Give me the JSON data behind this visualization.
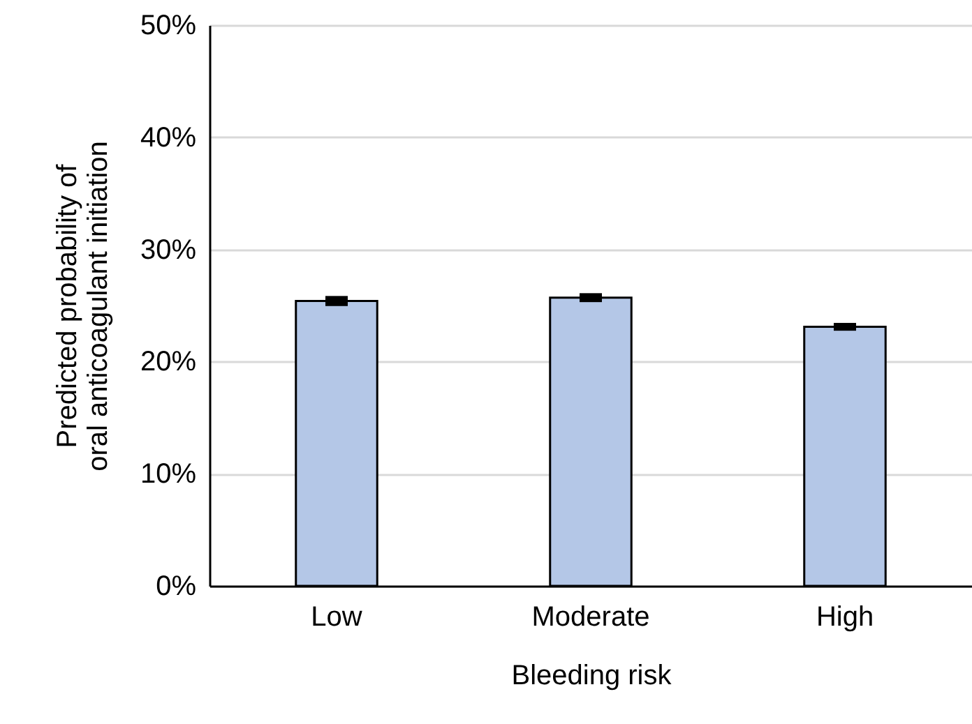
{
  "chart_data": {
    "type": "bar",
    "xlabel": "Bleeding risk",
    "ylabel": "Predicted probability of\noral anticoagulant initiation",
    "categories": [
      "Low",
      "Moderate",
      "High"
    ],
    "values": [
      25.4,
      25.7,
      23.1
    ],
    "errors": [
      0.2,
      0.15,
      0.1
    ],
    "color": "#b4c7e7",
    "ylim": [
      0,
      50
    ],
    "yticks": [
      {
        "value": 0,
        "label": "0%"
      },
      {
        "value": 10,
        "label": "10%"
      },
      {
        "value": 20,
        "label": "20%"
      },
      {
        "value": 30,
        "label": "30%"
      },
      {
        "value": 40,
        "label": "40%"
      },
      {
        "value": 50,
        "label": "50%"
      }
    ],
    "grid": "y"
  }
}
